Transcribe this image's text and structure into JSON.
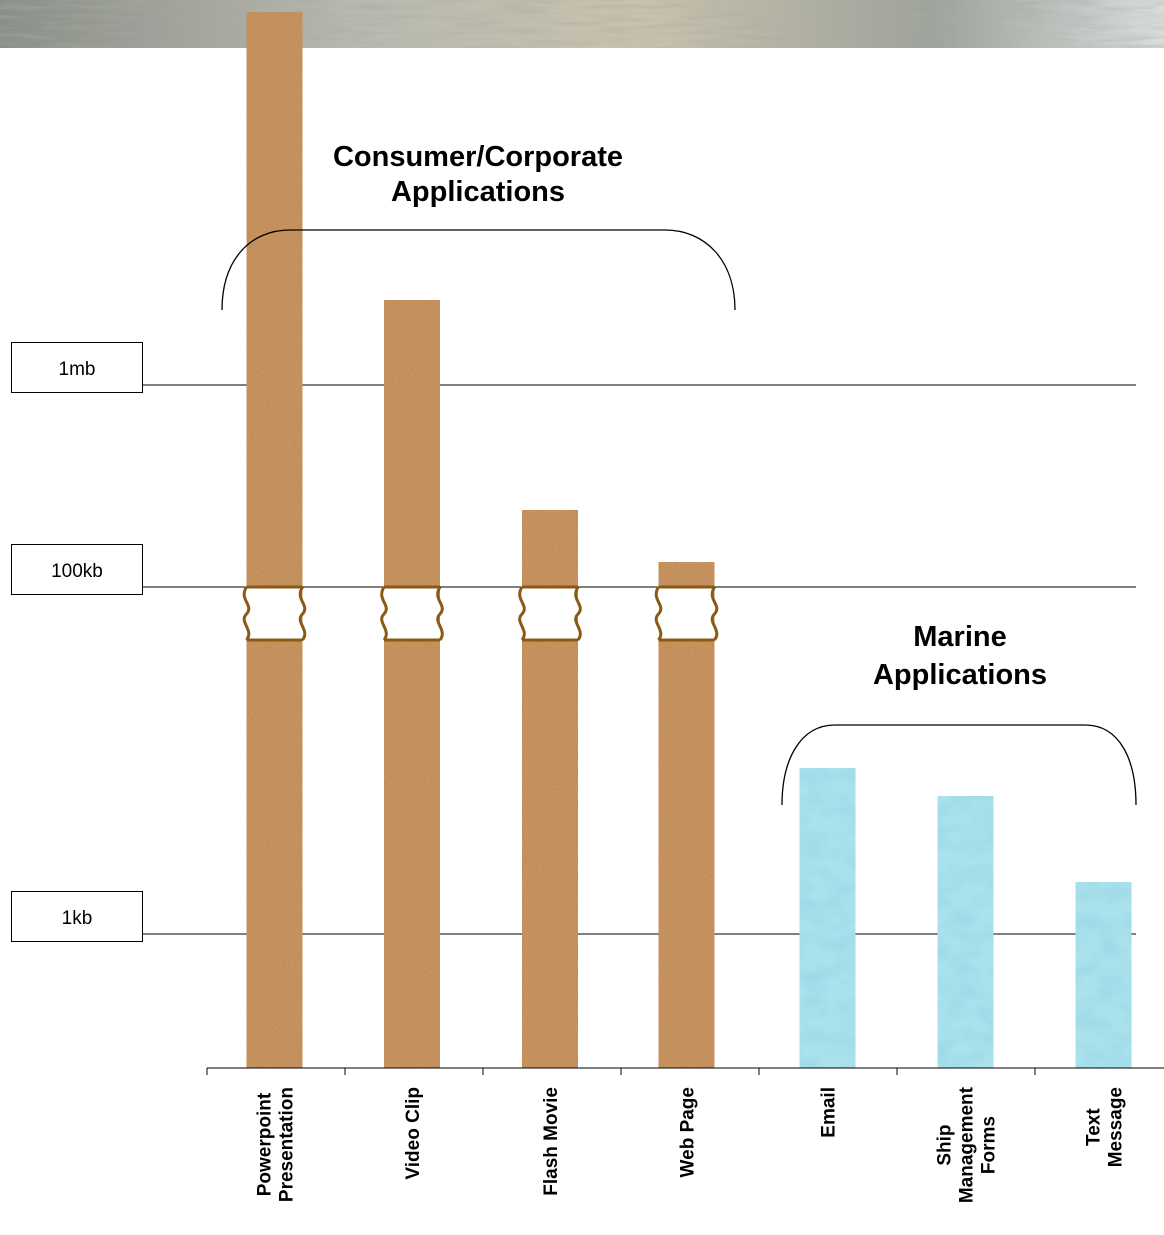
{
  "groups": [
    {
      "title_lines": [
        "Consumer/Corporate",
        "Applications"
      ]
    },
    {
      "title_lines": [
        "Marine",
        "Applications"
      ]
    }
  ],
  "levels": [
    "1mb",
    "100kb",
    "1kb"
  ],
  "categories": [
    {
      "lines": [
        "Powerpoint",
        "Presentation"
      ]
    },
    {
      "lines": [
        "Video Clip"
      ]
    },
    {
      "lines": [
        "Flash Movie"
      ]
    },
    {
      "lines": [
        "Web Page"
      ]
    },
    {
      "lines": [
        "Email"
      ]
    },
    {
      "lines": [
        "Ship",
        "Management",
        "Forms"
      ]
    },
    {
      "lines": [
        "Text",
        "Message"
      ]
    }
  ]
}
